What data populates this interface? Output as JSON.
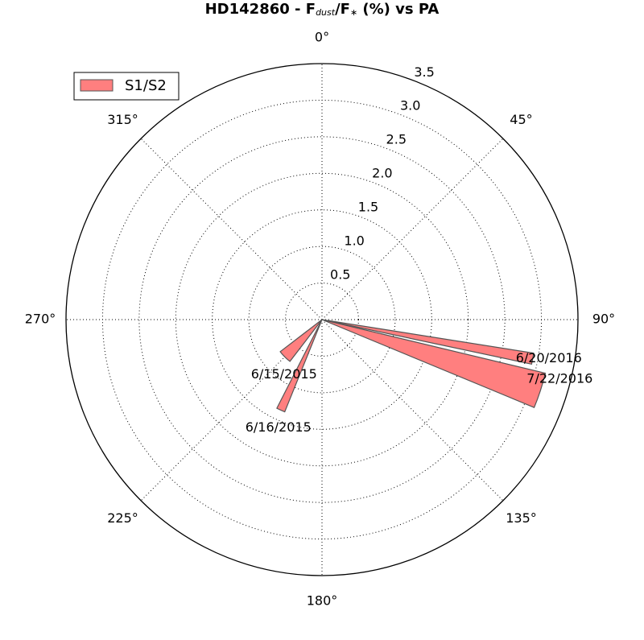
{
  "chart_data": {
    "type": "polar-bar",
    "title": [
      "HD142860 - F",
      "dust",
      "/F",
      "∗",
      " (%) vs PA"
    ],
    "categories": [
      "6/20/2016",
      "7/22/2016",
      "6/15/2015",
      "6/16/2015"
    ],
    "x": [
      100.5,
      108,
      225,
      204.5
    ],
    "widths": [
      3,
      9,
      15,
      5
    ],
    "series": [
      {
        "name": "S1/S2",
        "color": "#ff7f7f",
        "values": [
          2.93,
          3.14,
          0.72,
          1.36
        ]
      }
    ],
    "ylim": [
      0,
      3.5
    ],
    "yticks": [
      0.5,
      1.0,
      1.5,
      2.0,
      2.5,
      3.0,
      3.5
    ],
    "xticks": [
      {
        "value": 0,
        "label": "0°"
      },
      {
        "value": 45,
        "label": "45°"
      },
      {
        "value": 90,
        "label": "90°"
      },
      {
        "value": 135,
        "label": "135°"
      },
      {
        "value": 180,
        "label": "180°"
      },
      {
        "value": 225,
        "label": "225°"
      },
      {
        "value": 270,
        "label": "270°"
      },
      {
        "value": 315,
        "label": "315°"
      }
    ],
    "grid": true,
    "legend": "upper left"
  }
}
